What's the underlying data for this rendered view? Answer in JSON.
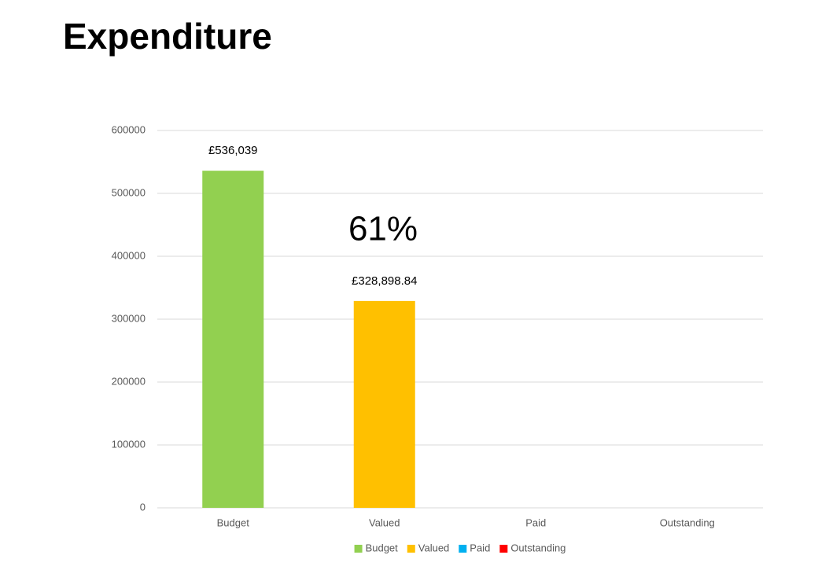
{
  "chart_data": {
    "type": "bar",
    "title": "Expenditure",
    "annotation": "61%",
    "categories": [
      "Budget",
      "Valued",
      "Paid",
      "Outstanding"
    ],
    "series": [
      {
        "name": "Budget",
        "color": "#92d050",
        "values": [
          536039,
          null,
          null,
          null
        ],
        "value_labels": [
          "£536,039",
          null,
          null,
          null
        ]
      },
      {
        "name": "Valued",
        "color": "#ffc000",
        "values": [
          null,
          328898.84,
          null,
          null
        ],
        "value_labels": [
          null,
          "£328,898.84",
          null,
          null
        ]
      },
      {
        "name": "Paid",
        "color": "#00b0f0",
        "values": [
          null,
          null,
          null,
          null
        ]
      },
      {
        "name": "Outstanding",
        "color": "#ff0000",
        "values": [
          null,
          null,
          null,
          null
        ]
      }
    ],
    "ylim": [
      0,
      600000
    ],
    "yticks": [
      0,
      100000,
      200000,
      300000,
      400000,
      500000,
      600000
    ],
    "grid": true,
    "legend": "bottom"
  }
}
